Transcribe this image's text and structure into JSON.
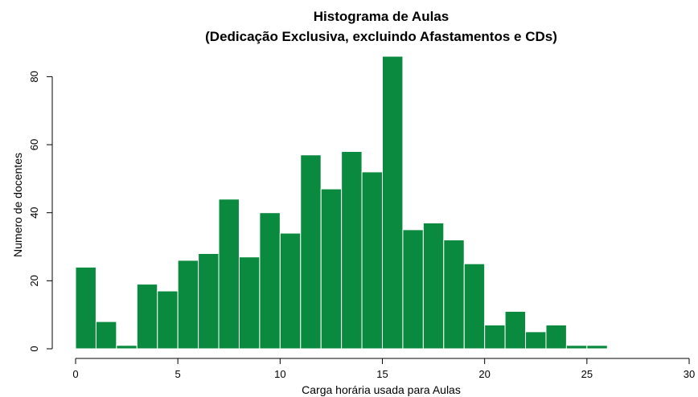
{
  "chart_data": {
    "type": "bar",
    "title": "Histograma de Aulas",
    "subtitle": "(Dedicação Exclusiva, excluindo Afastamentos e CDs)",
    "xlabel": "Carga horária usada para Aulas",
    "ylabel": "Numero de docentes",
    "bin_width": 1,
    "bins_start": [
      0,
      1,
      2,
      3,
      4,
      5,
      6,
      7,
      8,
      9,
      10,
      11,
      12,
      13,
      14,
      15,
      16,
      17,
      18,
      19,
      20,
      21,
      22,
      23,
      24,
      25
    ],
    "values": [
      24,
      8,
      1,
      19,
      17,
      26,
      28,
      44,
      27,
      40,
      34,
      57,
      47,
      58,
      52,
      86,
      35,
      37,
      32,
      25,
      7,
      11,
      5,
      7,
      1,
      1
    ],
    "xlim": [
      0,
      30
    ],
    "ylim": [
      0,
      86
    ],
    "xticks": [
      0,
      5,
      10,
      15,
      20,
      25,
      30
    ],
    "yticks": [
      0,
      20,
      40,
      60,
      80
    ],
    "bar_color": "#0a8a3e",
    "grid": false,
    "legend": "none"
  }
}
